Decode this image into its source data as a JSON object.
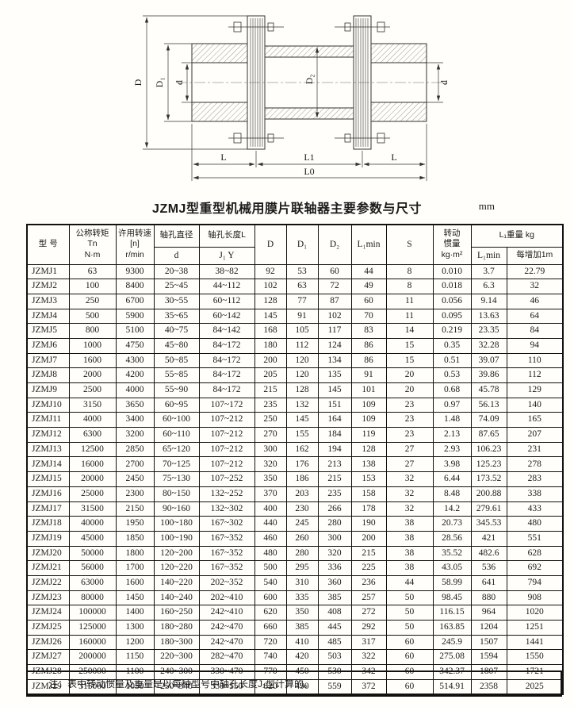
{
  "page": {
    "title": "JZMJ型重型机械用膜片联轴器主要参数与尺寸",
    "unit": "mm"
  },
  "drawing": {
    "labels": {
      "D": "D",
      "D1": "D₁",
      "d_left": "d",
      "D2": "D₂",
      "d_right": "d",
      "L_left": "L",
      "L1": "L1",
      "L_right": "L",
      "L0": "L0"
    }
  },
  "table": {
    "headers": {
      "model": "型  号",
      "torque": "公称转矩\nTn\nN·m",
      "speed": "许用转速\n[n]\nr/min",
      "bore_dia": "轴孔直径",
      "bore_dia_sub": "d",
      "bore_len": "轴孔长度L",
      "bore_len_sub": "J₁   Y",
      "D": "D",
      "D1": "D₁",
      "D2": "D₂",
      "L1min": "L₁min",
      "S": "S",
      "inertia": "转动\n惯量\nkg·m²",
      "weight_group": "L₁重量  kg",
      "weight_l1min": "L₁min",
      "weight_per_m": "每增加1m"
    },
    "rows": [
      [
        "JZMJ1",
        "63",
        "9300",
        "20~38",
        "38~82",
        "92",
        "53",
        "60",
        "44",
        "8",
        "0.010",
        "3.7",
        "22.79"
      ],
      [
        "JZMJ2",
        "100",
        "8400",
        "25~45",
        "44~112",
        "102",
        "63",
        "72",
        "49",
        "8",
        "0.018",
        "6.3",
        "32"
      ],
      [
        "JZMJ3",
        "250",
        "6700",
        "30~55",
        "60~112",
        "128",
        "77",
        "87",
        "60",
        "11",
        "0.056",
        "9.14",
        "46"
      ],
      [
        "JZMJ4",
        "500",
        "5900",
        "35~65",
        "60~142",
        "145",
        "91",
        "102",
        "70",
        "11",
        "0.095",
        "13.63",
        "64"
      ],
      [
        "JZMJ5",
        "800",
        "5100",
        "40~75",
        "84~142",
        "168",
        "105",
        "117",
        "83",
        "14",
        "0.219",
        "23.35",
        "84"
      ],
      [
        "JZMJ6",
        "1000",
        "4750",
        "45~80",
        "84~172",
        "180",
        "112",
        "124",
        "86",
        "15",
        "0.35",
        "32.28",
        "94"
      ],
      [
        "JZMJ7",
        "1600",
        "4300",
        "50~85",
        "84~172",
        "200",
        "120",
        "134",
        "86",
        "15",
        "0.51",
        "39.07",
        "110"
      ],
      [
        "JZMJ8",
        "2000",
        "4200",
        "55~85",
        "84~172",
        "205",
        "120",
        "135",
        "91",
        "20",
        "0.53",
        "39.86",
        "112"
      ],
      [
        "JZMJ9",
        "2500",
        "4000",
        "55~90",
        "84~172",
        "215",
        "128",
        "145",
        "101",
        "20",
        "0.68",
        "45.78",
        "129"
      ],
      [
        "JZMJ10",
        "3150",
        "3650",
        "60~95",
        "107~172",
        "235",
        "132",
        "151",
        "109",
        "23",
        "0.97",
        "56.13",
        "140"
      ],
      [
        "JZMJ11",
        "4000",
        "3400",
        "60~100",
        "107~212",
        "250",
        "145",
        "164",
        "109",
        "23",
        "1.48",
        "74.09",
        "165"
      ],
      [
        "JZMJ12",
        "6300",
        "3200",
        "60~110",
        "107~212",
        "270",
        "155",
        "184",
        "119",
        "23",
        "2.13",
        "87.65",
        "207"
      ],
      [
        "JZMJ13",
        "12500",
        "2850",
        "65~120",
        "107~212",
        "300",
        "162",
        "194",
        "128",
        "27",
        "2.93",
        "106.23",
        "231"
      ],
      [
        "JZMJ14",
        "16000",
        "2700",
        "70~125",
        "107~212",
        "320",
        "176",
        "213",
        "138",
        "27",
        "3.98",
        "125.23",
        "278"
      ],
      [
        "JZMJ15",
        "20000",
        "2450",
        "75~130",
        "107~252",
        "350",
        "186",
        "215",
        "153",
        "32",
        "6.44",
        "173.52",
        "283"
      ],
      [
        "JZMJ16",
        "25000",
        "2300",
        "80~150",
        "132~252",
        "370",
        "203",
        "235",
        "158",
        "32",
        "8.48",
        "200.88",
        "338"
      ],
      [
        "JZMJ17",
        "31500",
        "2150",
        "90~160",
        "132~302",
        "400",
        "230",
        "266",
        "178",
        "32",
        "14.2",
        "279.61",
        "433"
      ],
      [
        "JZMJ18",
        "40000",
        "1950",
        "100~180",
        "167~302",
        "440",
        "245",
        "280",
        "190",
        "38",
        "20.73",
        "345.53",
        "480"
      ],
      [
        "JZMJ19",
        "45000",
        "1850",
        "100~190",
        "167~352",
        "460",
        "260",
        "300",
        "200",
        "38",
        "28.56",
        "421",
        "551"
      ],
      [
        "JZMJ20",
        "50000",
        "1800",
        "120~200",
        "167~352",
        "480",
        "280",
        "320",
        "215",
        "38",
        "35.52",
        "482.6",
        "628"
      ],
      [
        "JZMJ21",
        "56000",
        "1700",
        "120~220",
        "167~352",
        "500",
        "295",
        "336",
        "225",
        "38",
        "43.05",
        "536",
        "692"
      ],
      [
        "JZMJ22",
        "63000",
        "1600",
        "140~220",
        "202~352",
        "540",
        "310",
        "360",
        "236",
        "44",
        "58.99",
        "641",
        "794"
      ],
      [
        "JZMJ23",
        "80000",
        "1450",
        "140~240",
        "202~410",
        "600",
        "335",
        "385",
        "257",
        "50",
        "98.45",
        "880",
        "908"
      ],
      [
        "JZMJ24",
        "100000",
        "1400",
        "160~250",
        "242~410",
        "620",
        "350",
        "408",
        "272",
        "50",
        "116.15",
        "964",
        "1020"
      ],
      [
        "JZMJ25",
        "125000",
        "1300",
        "180~280",
        "242~470",
        "660",
        "385",
        "445",
        "292",
        "50",
        "163.85",
        "1204",
        "1251"
      ],
      [
        "JZMJ26",
        "160000",
        "1200",
        "180~300",
        "242~470",
        "720",
        "410",
        "485",
        "317",
        "60",
        "245.9",
        "1507",
        "1441"
      ],
      [
        "JZMJ27",
        "200000",
        "1150",
        "220~300",
        "282~470",
        "740",
        "420",
        "503",
        "322",
        "60",
        "275.08",
        "1594",
        "1550"
      ],
      [
        "JZMJ28",
        "250000",
        "1100",
        "240~300",
        "330~470",
        "770",
        "450",
        "530",
        "342",
        "60",
        "342.37",
        "1807",
        "1721"
      ],
      [
        "JZMJ29",
        "315000",
        "1050",
        "250~340",
        "330~550",
        "820",
        "490",
        "559",
        "372",
        "60",
        "514.91",
        "2358",
        "2025"
      ]
    ],
    "note": "注：表中转动惯量及重量是以每种型号中轴孔长度J₁型计算的。"
  }
}
